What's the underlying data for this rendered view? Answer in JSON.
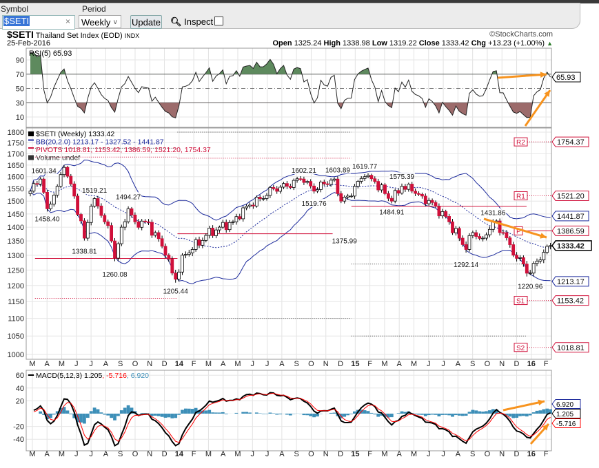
{
  "toolbar": {
    "symbol_label": "Symbol",
    "symbol_value": "$SETI",
    "clear": "×",
    "period_label": "Period",
    "period_value": "Weekly",
    "update": "Update",
    "inspect": "Inspect"
  },
  "header": {
    "symbol": "$SETI",
    "name": "Thailand Set Index (EOD)",
    "exchange": "INDX",
    "copyright": "©StockCharts.com",
    "date": "25-Feb-2016",
    "open_label": "Open",
    "open": "1325.24",
    "high_label": "High",
    "high": "1338.98",
    "low_label": "Low",
    "low": "1319.22",
    "close_label": "Close",
    "close": "1333.42",
    "chg_label": "Chg",
    "chg": "+13.23 (+1.00%)",
    "chg_arrow": "▲"
  },
  "colors": {
    "up_fill": "#ffffff",
    "down_fill": "#d0103a",
    "bb": "#1c2a9c",
    "pivot": "#d0103a",
    "rsi_over": "#5e8a5e",
    "rsi_under": "#9c6b6b",
    "macd": "#000000",
    "signal": "#ff0000",
    "hist": "#3d8fb8",
    "arrow": "#f7931e"
  },
  "chart_data": {
    "type": "candlestick",
    "x_labels": [
      {
        "t": "M"
      },
      {
        "t": "A"
      },
      {
        "t": "M"
      },
      {
        "t": "J"
      },
      {
        "t": "J"
      },
      {
        "t": "A"
      },
      {
        "t": "S"
      },
      {
        "t": "O"
      },
      {
        "t": "N"
      },
      {
        "t": "D"
      },
      {
        "t": "14",
        "bold": true
      },
      {
        "t": "F"
      },
      {
        "t": "M"
      },
      {
        "t": "A"
      },
      {
        "t": "M"
      },
      {
        "t": "J"
      },
      {
        "t": "J"
      },
      {
        "t": "A"
      },
      {
        "t": "S"
      },
      {
        "t": "O"
      },
      {
        "t": "N"
      },
      {
        "t": "D"
      },
      {
        "t": "15",
        "bold": true
      },
      {
        "t": "F"
      },
      {
        "t": "M"
      },
      {
        "t": "A"
      },
      {
        "t": "M"
      },
      {
        "t": "J"
      },
      {
        "t": "J"
      },
      {
        "t": "A"
      },
      {
        "t": "S"
      },
      {
        "t": "O"
      },
      {
        "t": "N"
      },
      {
        "t": "D"
      },
      {
        "t": "16",
        "bold": true
      },
      {
        "t": "F"
      }
    ],
    "price": {
      "legend": "$SETI (Weekly) 1333.42",
      "bb_legend": "BB(20,2.0) 1213.17 - 1327.52 - 1441.87",
      "pivots_legend": "PIVOTS 1018.81, 1153.42, 1386.59, 1521.20, 1754.37",
      "volume_legend": "Volume undef",
      "scale": "log",
      "ylim": [
        1000,
        1800
      ],
      "ticks": [
        1800,
        1750,
        1700,
        1650,
        1600,
        1550,
        1500,
        1450,
        1400,
        1350,
        1300,
        1250,
        1200,
        1150,
        1100,
        1050,
        1000
      ],
      "weekly_close_waypoints": [
        [
          0,
          1540
        ],
        [
          3,
          1590
        ],
        [
          5,
          1470
        ],
        [
          8,
          1560
        ],
        [
          10,
          1640
        ],
        [
          13,
          1520
        ],
        [
          16,
          1360
        ],
        [
          18,
          1480
        ],
        [
          19,
          1510
        ],
        [
          22,
          1420
        ],
        [
          24,
          1350
        ],
        [
          25,
          1290
        ],
        [
          27,
          1400
        ],
        [
          29,
          1470
        ],
        [
          31,
          1420
        ],
        [
          34,
          1420
        ],
        [
          37,
          1380
        ],
        [
          40,
          1300
        ],
        [
          42,
          1240
        ],
        [
          43,
          1220
        ],
        [
          45,
          1300
        ],
        [
          48,
          1320
        ],
        [
          52,
          1370
        ],
        [
          56,
          1400
        ],
        [
          60,
          1420
        ],
        [
          64,
          1480
        ],
        [
          68,
          1510
        ],
        [
          72,
          1550
        ],
        [
          76,
          1560
        ],
        [
          80,
          1590
        ],
        [
          82,
          1580
        ],
        [
          84,
          1540
        ],
        [
          87,
          1570
        ],
        [
          90,
          1590
        ],
        [
          92,
          1500
        ],
        [
          94,
          1520
        ],
        [
          96,
          1560
        ],
        [
          99,
          1600
        ],
        [
          102,
          1580
        ],
        [
          105,
          1530
        ],
        [
          107,
          1500
        ],
        [
          110,
          1560
        ],
        [
          113,
          1540
        ],
        [
          116,
          1520
        ],
        [
          120,
          1480
        ],
        [
          124,
          1420
        ],
        [
          127,
          1360
        ],
        [
          129,
          1320
        ],
        [
          131,
          1380
        ],
        [
          134,
          1360
        ],
        [
          137,
          1420
        ],
        [
          140,
          1380
        ],
        [
          143,
          1300
        ],
        [
          146,
          1270
        ],
        [
          148,
          1240
        ],
        [
          150,
          1280
        ],
        [
          152,
          1310
        ],
        [
          154,
          1333.42
        ]
      ],
      "annotations": [
        {
          "w": 4,
          "v": 1601.34,
          "t": "1601.34",
          "pos": "above"
        },
        {
          "w": 5,
          "v": 1458.4,
          "t": "1458.40",
          "pos": "below"
        },
        {
          "w": 19,
          "v": 1519.21,
          "t": "1519.21",
          "pos": "above"
        },
        {
          "w": 16,
          "v": 1338.81,
          "t": "1338.81",
          "pos": "below"
        },
        {
          "w": 29,
          "v": 1494.27,
          "t": "1494.27",
          "pos": "above"
        },
        {
          "w": 25,
          "v": 1260.08,
          "t": "1260.08",
          "pos": "below"
        },
        {
          "w": 43,
          "v": 1205.44,
          "t": "1205.44",
          "pos": "below"
        },
        {
          "w": 81,
          "v": 1602.21,
          "t": "1602.21",
          "pos": "above"
        },
        {
          "w": 84,
          "v": 1519.76,
          "t": "1519.76",
          "pos": "below"
        },
        {
          "w": 91,
          "v": 1603.89,
          "t": "1603.89",
          "pos": "above"
        },
        {
          "w": 93,
          "v": 1375.99,
          "t": "1375.99",
          "pos": "below"
        },
        {
          "w": 99,
          "v": 1619.77,
          "t": "1619.77",
          "pos": "above"
        },
        {
          "w": 110,
          "v": 1575.39,
          "t": "1575.39",
          "pos": "above"
        },
        {
          "w": 107,
          "v": 1484.91,
          "t": "1484.91",
          "pos": "below"
        },
        {
          "w": 129,
          "v": 1292.14,
          "t": "1292.14",
          "pos": "below"
        },
        {
          "w": 137,
          "v": 1431.86,
          "t": "1431.86",
          "pos": "above"
        },
        {
          "w": 148,
          "v": 1220.96,
          "t": "1220.96",
          "pos": "below"
        }
      ],
      "pivots_current": [
        {
          "name": "R2",
          "v": 1754.37,
          "t": "1754.37"
        },
        {
          "name": "R1",
          "v": 1521.2,
          "t": "1521.20"
        },
        {
          "name": "P",
          "v": 1386.59,
          "t": "1386.59"
        },
        {
          "name": "S1",
          "v": 1153.42,
          "t": "1153.42"
        },
        {
          "name": "S2",
          "v": 1018.81,
          "t": "1018.81"
        }
      ],
      "value_tags": [
        {
          "v": 1441.87,
          "t": "1441.87",
          "kind": "bb"
        },
        {
          "v": 1333.42,
          "t": "1333.42",
          "kind": "last"
        },
        {
          "v": 1213.17,
          "t": "1213.17",
          "kind": "bb"
        }
      ]
    },
    "rsi": {
      "legend": "RSI(5) 65.93",
      "value": 65.93,
      "value_label": "65.93",
      "ylim": [
        0,
        100
      ],
      "ticks": [
        90,
        70,
        50,
        30,
        10
      ],
      "overbought": 70,
      "oversold": 30
    },
    "macd": {
      "legend_main": "MACD(5,12,3) 1.205",
      "legend_signal": ", -5.716",
      "legend_hist": ", 6.920",
      "macd": 1.205,
      "signal": -5.716,
      "hist": 6.92,
      "ylim": [
        -50,
        65
      ],
      "ticks": [
        60,
        40,
        20,
        -20,
        -40
      ],
      "tags": [
        "6.920",
        "1.205",
        "-5.716"
      ]
    }
  }
}
